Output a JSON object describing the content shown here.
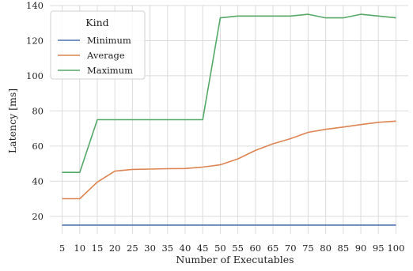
{
  "chart_data": {
    "type": "line",
    "xlabel": "Number of Executables",
    "ylabel": "Latency [ms]",
    "x": [
      5,
      10,
      15,
      20,
      25,
      30,
      35,
      40,
      45,
      50,
      55,
      60,
      65,
      70,
      75,
      80,
      85,
      90,
      95,
      100
    ],
    "ylim": [
      10,
      140
    ],
    "yticks": [
      20,
      40,
      60,
      80,
      100,
      120,
      140
    ],
    "grid": true,
    "legend": {
      "title": "Kind",
      "placement": "top-left"
    },
    "series": [
      {
        "name": "Minimum",
        "color": "#4c72b0",
        "values": [
          15,
          15,
          15,
          15,
          15,
          15,
          15,
          15,
          15,
          15,
          15,
          15,
          15,
          15,
          15,
          15,
          15,
          15,
          15,
          15
        ]
      },
      {
        "name": "Average",
        "color": "#dd8452",
        "values": [
          30,
          30,
          39.5,
          45.7,
          46.7,
          46.9,
          47.1,
          47.2,
          48,
          49.3,
          52.7,
          57.5,
          61.3,
          64.2,
          67.8,
          69.5,
          70.8,
          72.2,
          73.5,
          74.2
        ]
      },
      {
        "name": "Maximum",
        "color": "#55a868",
        "values": [
          45,
          45,
          75,
          75,
          75,
          75,
          75,
          75,
          75,
          133,
          134,
          134,
          134,
          134,
          135,
          133,
          133,
          135,
          134,
          133
        ]
      }
    ]
  }
}
